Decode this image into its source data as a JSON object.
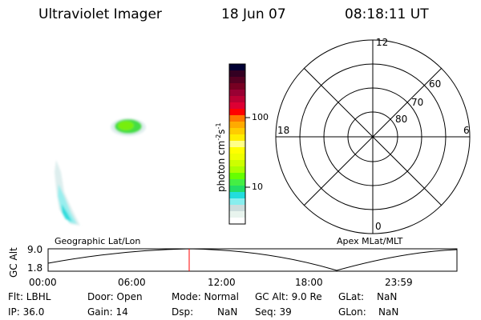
{
  "header": {
    "instrument": "Ultraviolet Imager",
    "date": "18 Jun 07",
    "time": "08:18:11 UT"
  },
  "colorbar": {
    "label": "photon cm",
    "exp1": "-2",
    "s": "s",
    "exp2": "-1",
    "tick_labels": [
      "100",
      "10"
    ],
    "colors": [
      "#000033",
      "#330022",
      "#550022",
      "#770022",
      "#990033",
      "#bb0033",
      "#dd0033",
      "#ff0000",
      "#ff7700",
      "#ffaa00",
      "#ffcc00",
      "#ffee00",
      "#ffff88",
      "#ffff00",
      "#eeff00",
      "#ccff00",
      "#aaff00",
      "#66ff00",
      "#44ee44",
      "#22dd66",
      "#22dddd",
      "#88eeee",
      "#ccdddd",
      "#e8f4ee",
      "#ffffff"
    ]
  },
  "polar": {
    "mlt_labels": [
      "12",
      "6",
      "0",
      "18"
    ],
    "lat_labels": [
      "60",
      "70",
      "80"
    ]
  },
  "orbit": {
    "left_label": "Geographic Lat/Lon",
    "right_label": "Apex MLat/MLT",
    "y_label": "GC Alt",
    "y_ticks": [
      "9.0",
      "1.8"
    ],
    "x_ticks": [
      "00:00",
      "06:00",
      "12:00",
      "18:00",
      "23:59"
    ],
    "current_time_marker_color": "#ff0000"
  },
  "status": {
    "flt": "Flt: LBHL",
    "ip": "IP: 36.0",
    "door": "Door: Open",
    "gain": "Gain: 14",
    "mode": "Mode: Normal",
    "dsp_label": "Dsp:",
    "dsp_value": "NaN",
    "gcalt": "GC Alt: 9.0 Re",
    "seq": "Seq: 39",
    "glat_label": "GLat:",
    "glat_value": "NaN",
    "glon_label": "GLon:",
    "glon_value": "NaN"
  }
}
